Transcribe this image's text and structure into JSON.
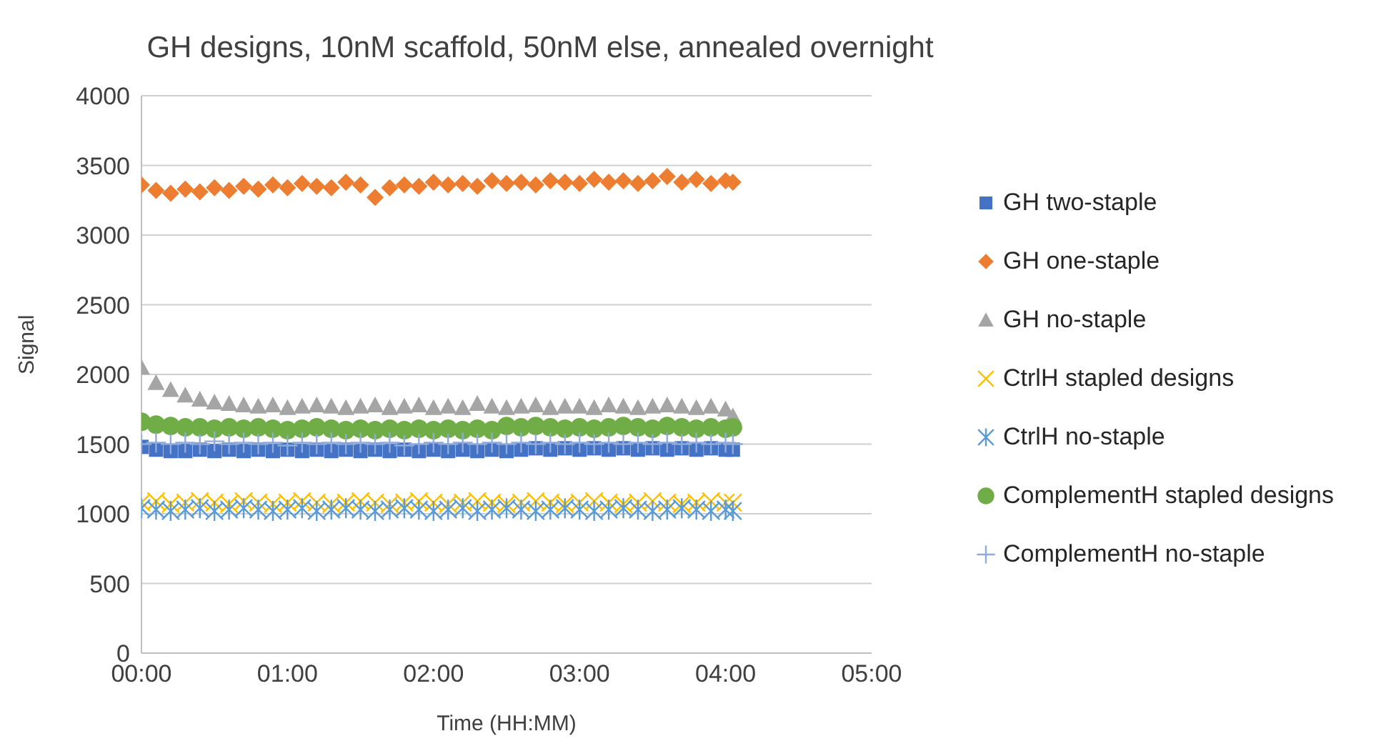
{
  "chart_data": {
    "type": "scatter",
    "title": "GH designs, 10nM scaffold, 50nM else, annealed overnight",
    "xlabel": "Time (HH:MM)",
    "ylabel": "Signal",
    "x": [
      0,
      0.1,
      0.2,
      0.3,
      0.4,
      0.5,
      0.6,
      0.7,
      0.8,
      0.9,
      1.0,
      1.1,
      1.2,
      1.3,
      1.4,
      1.5,
      1.6,
      1.7,
      1.8,
      1.9,
      2.0,
      2.1,
      2.2,
      2.3,
      2.4,
      2.5,
      2.6,
      2.7,
      2.8,
      2.9,
      3.0,
      3.1,
      3.2,
      3.3,
      3.4,
      3.5,
      3.6,
      3.7,
      3.8,
      3.9,
      4.0,
      4.05
    ],
    "xlim": [
      0,
      5
    ],
    "xticks": [
      {
        "value": 0,
        "label": "00:00"
      },
      {
        "value": 1,
        "label": "01:00"
      },
      {
        "value": 2,
        "label": "02:00"
      },
      {
        "value": 3,
        "label": "03:00"
      },
      {
        "value": 4,
        "label": "04:00"
      },
      {
        "value": 5,
        "label": "05:00"
      }
    ],
    "ylim": [
      0,
      4000
    ],
    "yticks": [
      0,
      500,
      1000,
      1500,
      2000,
      2500,
      3000,
      3500,
      4000
    ],
    "grid": "y",
    "legend": "right",
    "series": [
      {
        "name": "GH two-staple",
        "color": "#4472c4",
        "marker": "square",
        "values": [
          1480,
          1460,
          1450,
          1450,
          1460,
          1450,
          1460,
          1450,
          1460,
          1450,
          1460,
          1450,
          1460,
          1450,
          1460,
          1450,
          1460,
          1450,
          1460,
          1450,
          1460,
          1450,
          1460,
          1450,
          1460,
          1450,
          1460,
          1470,
          1460,
          1470,
          1460,
          1470,
          1460,
          1470,
          1460,
          1470,
          1460,
          1470,
          1460,
          1470,
          1460,
          1460
        ]
      },
      {
        "name": "GH one-staple",
        "color": "#ed7d31",
        "marker": "diamond",
        "values": [
          3360,
          3320,
          3300,
          3330,
          3310,
          3340,
          3320,
          3350,
          3330,
          3360,
          3340,
          3370,
          3350,
          3340,
          3380,
          3360,
          3270,
          3340,
          3360,
          3350,
          3380,
          3360,
          3370,
          3350,
          3390,
          3370,
          3380,
          3360,
          3390,
          3380,
          3370,
          3400,
          3380,
          3390,
          3370,
          3390,
          3420,
          3380,
          3400,
          3370,
          3390,
          3380
        ]
      },
      {
        "name": "GH no-staple",
        "color": "#a5a5a5",
        "marker": "triangle",
        "values": [
          2050,
          1940,
          1890,
          1850,
          1820,
          1800,
          1790,
          1780,
          1770,
          1780,
          1760,
          1770,
          1780,
          1770,
          1760,
          1770,
          1780,
          1760,
          1770,
          1780,
          1760,
          1770,
          1760,
          1790,
          1770,
          1760,
          1770,
          1780,
          1760,
          1770,
          1770,
          1760,
          1780,
          1770,
          1760,
          1770,
          1780,
          1770,
          1760,
          1770,
          1750,
          1700
        ]
      },
      {
        "name": "CtrlH stapled designs",
        "color": "#ffc000",
        "marker": "x",
        "values": [
          1080,
          1090,
          1070,
          1080,
          1090,
          1080,
          1070,
          1090,
          1080,
          1070,
          1080,
          1090,
          1080,
          1070,
          1080,
          1090,
          1080,
          1070,
          1080,
          1090,
          1080,
          1070,
          1080,
          1090,
          1080,
          1070,
          1080,
          1090,
          1080,
          1070,
          1080,
          1090,
          1080,
          1070,
          1080,
          1090,
          1080,
          1070,
          1080,
          1090,
          1080,
          1080
        ]
      },
      {
        "name": "CtrlH no-staple",
        "color": "#5b9bd5",
        "marker": "cross",
        "values": [
          1040,
          1030,
          1020,
          1030,
          1040,
          1020,
          1030,
          1040,
          1030,
          1020,
          1030,
          1040,
          1020,
          1030,
          1040,
          1030,
          1020,
          1030,
          1040,
          1030,
          1020,
          1030,
          1040,
          1020,
          1030,
          1040,
          1030,
          1020,
          1030,
          1040,
          1030,
          1020,
          1030,
          1040,
          1030,
          1020,
          1030,
          1040,
          1030,
          1020,
          1030,
          1020
        ]
      },
      {
        "name": "ComplementH stapled designs",
        "color": "#70ad47",
        "marker": "circle",
        "values": [
          1660,
          1640,
          1630,
          1620,
          1620,
          1610,
          1620,
          1610,
          1620,
          1610,
          1600,
          1610,
          1620,
          1610,
          1600,
          1610,
          1600,
          1610,
          1600,
          1610,
          1600,
          1610,
          1600,
          1610,
          1600,
          1630,
          1620,
          1630,
          1620,
          1610,
          1620,
          1610,
          1620,
          1630,
          1620,
          1610,
          1630,
          1620,
          1610,
          1620,
          1610,
          1620
        ]
      },
      {
        "name": "ComplementH no-staple",
        "color": "#8faadc",
        "marker": "plus",
        "values": [
          1500,
          1510,
          1500,
          1510,
          1500,
          1520,
          1500,
          1510,
          1500,
          1510,
          1490,
          1510,
          1500,
          1510,
          1500,
          1510,
          1500,
          1510,
          1490,
          1500,
          1510,
          1500,
          1510,
          1500,
          1510,
          1500,
          1510,
          1500,
          1510,
          1500,
          1510,
          1500,
          1510,
          1500,
          1510,
          1500,
          1510,
          1500,
          1510,
          1500,
          1510,
          1500
        ]
      }
    ]
  }
}
